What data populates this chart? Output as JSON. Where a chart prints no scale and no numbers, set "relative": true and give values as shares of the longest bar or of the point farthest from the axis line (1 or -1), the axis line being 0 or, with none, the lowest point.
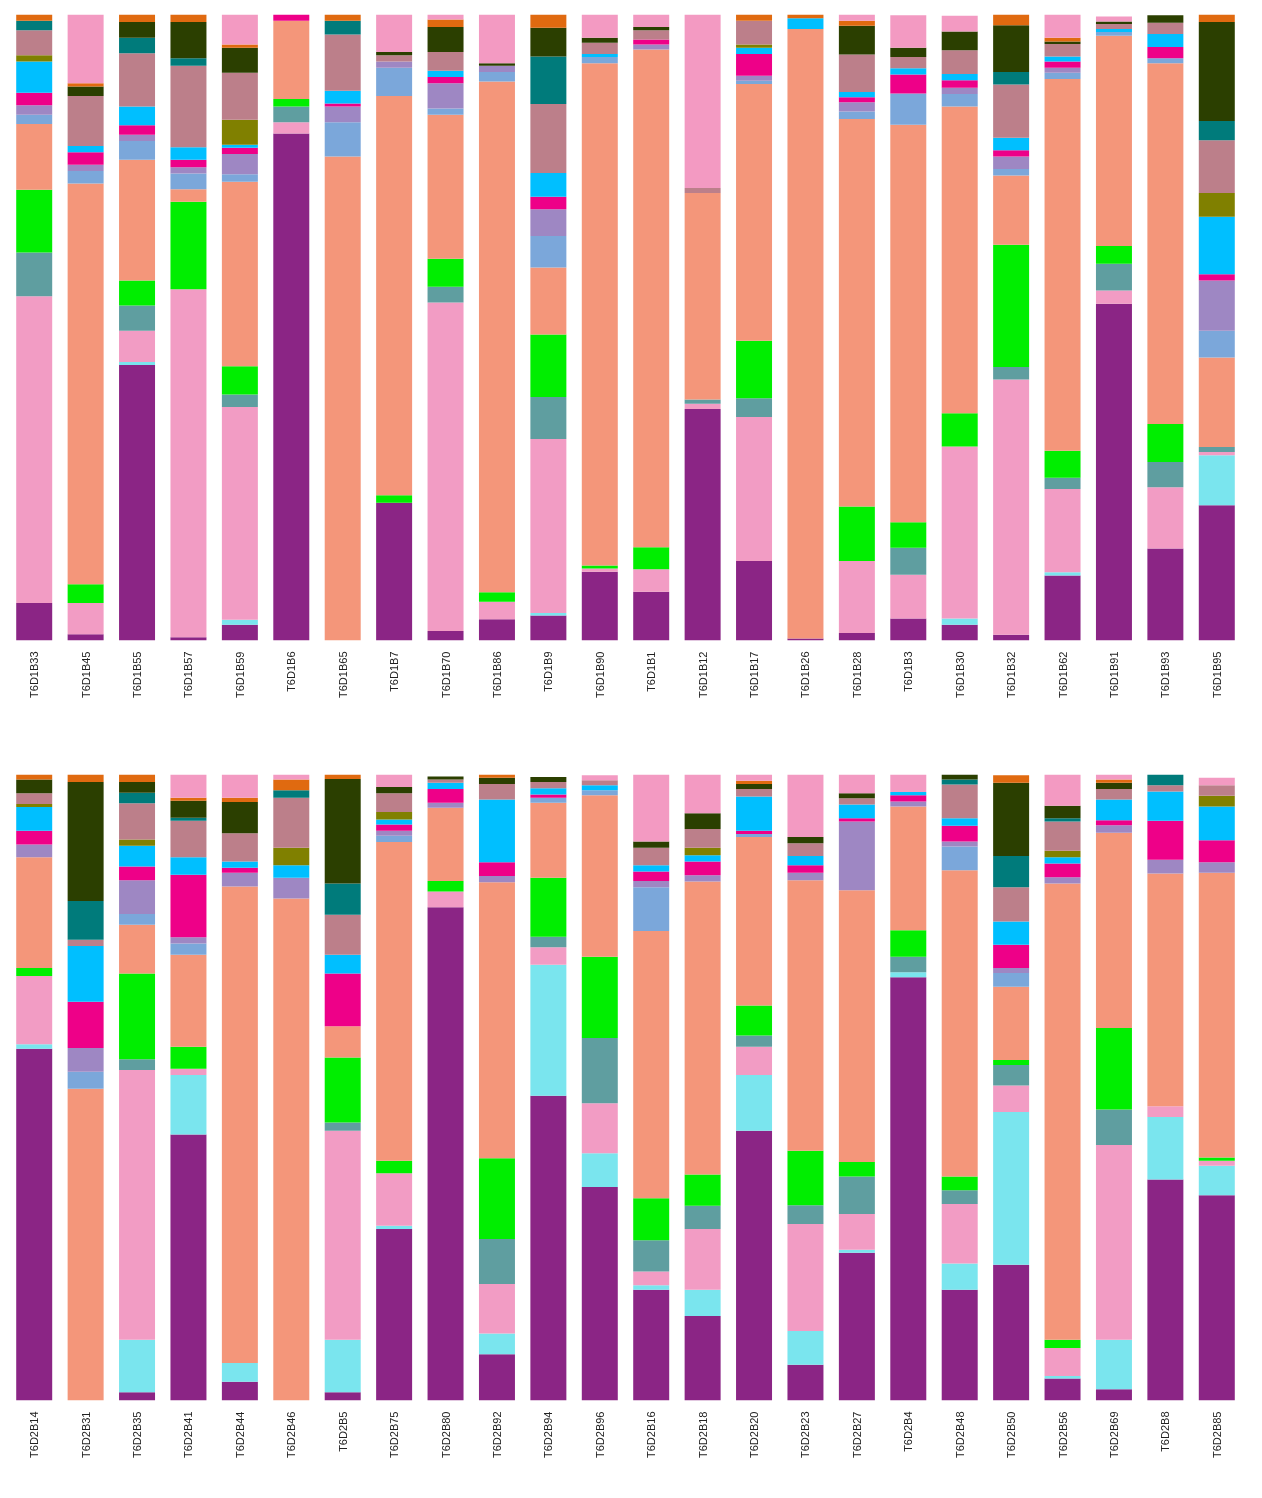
{
  "chart_data": [
    {
      "type": "bar",
      "stacked": true,
      "relative": true,
      "categories": [
        "T6D1B33",
        "T6D1B45",
        "T6D1B55",
        "T6D1B57",
        "T6D1B59",
        "T6D1B6",
        "T6D1B65",
        "T6D1B7",
        "T6D1B70",
        "T6D1B86",
        "T6D1B9",
        "T6D1B90",
        "T6D1B1",
        "T6D1B12",
        "T6D1B17",
        "T6D1B26",
        "T6D1B28",
        "T6D1B3",
        "T6D1B30",
        "T6D1B32",
        "T6D1B62",
        "T6D1B91",
        "T6D1B93",
        "T6D1B95"
      ],
      "series": [
        {
          "color": "#8b2585",
          "values": [
            0.06,
            0.01,
            0.44,
            0.005,
            0.025,
            0.81,
            0,
            0.22,
            0.015,
            0.034,
            0.04,
            0.11,
            0.078,
            0.37,
            0.127,
            0.003,
            0.012,
            0.035,
            0.025,
            0.009,
            0.104,
            0.538,
            0.147,
            0.216
          ]
        },
        {
          "color": "#7ae5ee",
          "values": [
            0,
            0,
            0.005,
            0,
            0.008,
            0,
            0,
            0,
            0,
            0,
            0.004,
            0,
            0,
            0,
            0,
            0,
            0,
            0,
            0.01,
            0,
            0.005,
            0,
            0,
            0.08
          ]
        },
        {
          "color": "#f29cc4",
          "values": [
            0.49,
            0.05,
            0.05,
            0.556,
            0.34,
            0.018,
            0,
            0,
            0.525,
            0.028,
            0.278,
            0.005,
            0.036,
            0.008,
            0.23,
            0,
            0.115,
            0.07,
            0.275,
            0.408,
            0.133,
            0.021,
            0.098,
            0.005
          ]
        },
        {
          "color": "#5f9ea0",
          "values": [
            0.07,
            0,
            0.04,
            0,
            0.02,
            0.025,
            0,
            0,
            0.025,
            0,
            0.067,
            0,
            0,
            0.007,
            0.03,
            0,
            0,
            0.043,
            0,
            0.02,
            0.018,
            0.043,
            0.04,
            0.008
          ]
        },
        {
          "color": "#00ee00",
          "values": [
            0.1,
            0.03,
            0.04,
            0.14,
            0.045,
            0.012,
            0,
            0.012,
            0.045,
            0.015,
            0.1,
            0.005,
            0.035,
            0,
            0.092,
            0,
            0.087,
            0.041,
            0.053,
            0.195,
            0.043,
            0.028,
            0.061,
            0
          ]
        },
        {
          "color": "#f4967a",
          "values": [
            0.105,
            0.64,
            0.193,
            0.02,
            0.295,
            0.125,
            0.773,
            0.638,
            0.23,
            0.816,
            0.107,
            0.802,
            0.795,
            0.33,
            0.41,
            0.974,
            0.619,
            0.635,
            0.49,
            0.111,
            0.594,
            0.336,
            0.576,
            0.143
          ]
        },
        {
          "color": "#7ba7da",
          "values": [
            0.015,
            0.02,
            0.03,
            0.025,
            0.012,
            0,
            0.055,
            0.045,
            0.01,
            0.015,
            0.05,
            0.01,
            0,
            0,
            0.005,
            0,
            0.012,
            0.05,
            0.02,
            0.01,
            0.01,
            0.006,
            0.008,
            0.043
          ]
        },
        {
          "color": "#9e87c3",
          "values": [
            0.015,
            0.01,
            0.01,
            0.01,
            0.032,
            0,
            0.025,
            0.01,
            0.04,
            0.01,
            0.043,
            0,
            0.008,
            0,
            0.008,
            0,
            0.015,
            0,
            0.01,
            0.02,
            0.008,
            0,
            0,
            0.08
          ]
        },
        {
          "color": "#ee0088",
          "values": [
            0.02,
            0.02,
            0.015,
            0.012,
            0.01,
            0.01,
            0.005,
            0,
            0.01,
            0,
            0.02,
            0,
            0.008,
            0,
            0.035,
            0,
            0.008,
            0.03,
            0.012,
            0.01,
            0.01,
            0,
            0.018,
            0.01
          ]
        },
        {
          "color": "#00bfff",
          "values": [
            0.05,
            0.01,
            0.03,
            0.02,
            0.005,
            0,
            0.02,
            0,
            0.01,
            0,
            0.038,
            0.005,
            0,
            0,
            0.01,
            0.017,
            0.008,
            0.01,
            0.01,
            0.02,
            0.008,
            0.005,
            0.021,
            0.092
          ]
        },
        {
          "color": "#808000",
          "values": [
            0.01,
            0,
            0,
            0,
            0.04,
            0,
            0,
            0,
            0,
            0,
            0,
            0,
            0,
            0,
            0.005,
            0,
            0,
            0,
            0,
            0,
            0,
            0,
            0,
            0.038
          ]
        },
        {
          "color": "#bc7f8a",
          "values": [
            0.04,
            0.08,
            0.085,
            0.13,
            0.075,
            0,
            0.09,
            0.01,
            0.03,
            0,
            0.11,
            0.018,
            0.015,
            0.008,
            0.038,
            0,
            0.06,
            0.018,
            0.038,
            0.085,
            0.02,
            0.008,
            0.018,
            0.084
          ]
        },
        {
          "color": "#007b7b",
          "values": [
            0.015,
            0,
            0.025,
            0.012,
            0,
            0,
            0.022,
            0,
            0,
            0,
            0.076,
            0,
            0,
            0,
            0,
            0,
            0,
            0,
            0,
            0.02,
            0,
            0,
            0,
            0.031
          ]
        },
        {
          "color": "#2b3f00",
          "values": [
            0,
            0.015,
            0.025,
            0.058,
            0.04,
            0,
            0,
            0.005,
            0.04,
            0.004,
            0.046,
            0.008,
            0.005,
            0,
            0,
            0,
            0.046,
            0.015,
            0.03,
            0.075,
            0.004,
            0.004,
            0.012,
            0.158
          ]
        },
        {
          "color": "#e06a10",
          "values": [
            0.01,
            0.005,
            0.012,
            0.012,
            0.005,
            0,
            0.01,
            0,
            0.012,
            0,
            0.021,
            0,
            0,
            0,
            0.01,
            0.006,
            0.008,
            0,
            0,
            0.017,
            0.006,
            0,
            0,
            0.012
          ]
        },
        {
          "color": "#f39ac2",
          "values": [
            0,
            0.11,
            0,
            0,
            0.048,
            0,
            0,
            0.06,
            0.008,
            0.078,
            0,
            0.037,
            0.02,
            0.277,
            0,
            0,
            0.01,
            0.052,
            0.025,
            0,
            0.037,
            0.008,
            0,
            0
          ]
        }
      ]
    },
    {
      "type": "bar",
      "stacked": true,
      "relative": true,
      "categories": [
        "T6D2B14",
        "T6D2B31",
        "T6D2B35",
        "T6D2B41",
        "T6D2B44",
        "T6D2B46",
        "T6D2B5",
        "T6D2B75",
        "T6D2B80",
        "T6D2B92",
        "T6D2B94",
        "T6D2B96",
        "T6D2B16",
        "T6D2B18",
        "T6D2B20",
        "T6D2B23",
        "T6D2B27",
        "T6D2B4",
        "T6D2B48",
        "T6D2B50",
        "T6D2B56",
        "T6D2B69",
        "T6D2B8",
        "T6D2B85"
      ],
      "series": [
        {
          "color": "#8b2585",
          "values": [
            0.562,
            0,
            0.013,
            0.425,
            0.03,
            0,
            0.013,
            0.274,
            0.788,
            0.074,
            0.487,
            0.341,
            0.177,
            0.135,
            0.431,
            0.057,
            0.236,
            0.676,
            0.177,
            0.217,
            0.035,
            0.018,
            0.353,
            0.328
          ]
        },
        {
          "color": "#7ae5ee",
          "values": [
            0.007,
            0,
            0.084,
            0.095,
            0.03,
            0,
            0.084,
            0.005,
            0,
            0.033,
            0.209,
            0.054,
            0.007,
            0.042,
            0.089,
            0.054,
            0.005,
            0.008,
            0.042,
            0.244,
            0.004,
            0.079,
            0.1,
            0.047
          ]
        },
        {
          "color": "#f29cc4",
          "values": [
            0.109,
            0,
            0.431,
            0.01,
            0,
            0,
            0.334,
            0.084,
            0.025,
            0.079,
            0.028,
            0.08,
            0.022,
            0.097,
            0.045,
            0.171,
            0.057,
            0,
            0.095,
            0.042,
            0.045,
            0.311,
            0.017,
            0.008
          ]
        },
        {
          "color": "#5f9ea0",
          "values": [
            0,
            0,
            0.017,
            0,
            0,
            0,
            0.013,
            0,
            0,
            0.072,
            0.017,
            0.104,
            0.05,
            0.037,
            0.018,
            0.03,
            0.06,
            0.025,
            0.022,
            0.033,
            0,
            0.057,
            0,
            0
          ]
        },
        {
          "color": "#00ee00",
          "values": [
            0.013,
            0,
            0.137,
            0.035,
            0,
            0,
            0.104,
            0.02,
            0.017,
            0.129,
            0.094,
            0.13,
            0.067,
            0.05,
            0.048,
            0.087,
            0.023,
            0.042,
            0.022,
            0.008,
            0.013,
            0.13,
            0,
            0.005
          ]
        },
        {
          "color": "#f4967a",
          "values": [
            0.177,
            0.498,
            0.078,
            0.147,
            0.761,
            0.802,
            0.05,
            0.509,
            0.117,
            0.441,
            0.12,
            0.258,
            0.427,
            0.468,
            0.269,
            0.432,
            0.434,
            0.198,
            0.489,
            0.117,
            0.729,
            0.312,
            0.372,
            0.455
          ]
        },
        {
          "color": "#7ba7da",
          "values": [
            0,
            0.027,
            0.017,
            0.018,
            0,
            0,
            0,
            0.01,
            0,
            0,
            0.008,
            0.008,
            0.07,
            0,
            0.005,
            0,
            0,
            0,
            0.038,
            0.022,
            0,
            0,
            0,
            0
          ]
        },
        {
          "color": "#9e87c3",
          "values": [
            0.02,
            0.038,
            0.054,
            0.01,
            0.022,
            0.033,
            0,
            0.008,
            0.008,
            0.01,
            0,
            0,
            0.01,
            0.01,
            0,
            0.012,
            0.11,
            0.008,
            0.008,
            0.008,
            0.01,
            0.012,
            0.022,
            0.017
          ]
        },
        {
          "color": "#ee0088",
          "values": [
            0.022,
            0.074,
            0.022,
            0.1,
            0.008,
            0,
            0.084,
            0.01,
            0.022,
            0.022,
            0.005,
            0,
            0.015,
            0.022,
            0.005,
            0.012,
            0.005,
            0.01,
            0.025,
            0.037,
            0.022,
            0.008,
            0.062,
            0.035
          ]
        },
        {
          "color": "#00bfff",
          "values": [
            0.038,
            0.089,
            0.033,
            0.028,
            0.01,
            0.02,
            0.03,
            0.008,
            0.01,
            0.1,
            0.01,
            0.008,
            0.01,
            0.01,
            0.055,
            0.015,
            0.022,
            0.005,
            0.012,
            0.037,
            0.01,
            0.033,
            0.047,
            0.054
          ]
        },
        {
          "color": "#808000",
          "values": [
            0.005,
            0,
            0.01,
            0,
            0,
            0.028,
            0,
            0.012,
            0,
            0,
            0,
            0,
            0,
            0.012,
            0,
            0,
            0,
            0,
            0,
            0,
            0.01,
            0,
            0,
            0.017
          ]
        },
        {
          "color": "#bc7f8a",
          "values": [
            0.017,
            0.01,
            0.058,
            0.058,
            0.045,
            0.08,
            0.064,
            0.03,
            0.005,
            0.025,
            0.01,
            0.008,
            0.028,
            0.03,
            0.012,
            0.02,
            0.01,
            0,
            0.054,
            0.055,
            0.047,
            0.017,
            0.01,
            0.017
          ]
        },
        {
          "color": "#007b7b",
          "values": [
            0,
            0.062,
            0.017,
            0.005,
            0,
            0.012,
            0.05,
            0,
            0,
            0,
            0,
            0,
            0,
            0,
            0,
            0,
            0,
            0,
            0.008,
            0.05,
            0.005,
            0,
            0.017,
            0
          ]
        },
        {
          "color": "#2b3f00",
          "values": [
            0.022,
            0.19,
            0.017,
            0.027,
            0.05,
            0,
            0.167,
            0.01,
            0.005,
            0.01,
            0.008,
            0,
            0.01,
            0.025,
            0.008,
            0.01,
            0.008,
            0,
            0.008,
            0.117,
            0.02,
            0.01,
            0,
            0
          ]
        },
        {
          "color": "#e06a10",
          "values": [
            0.008,
            0.012,
            0.012,
            0.005,
            0.007,
            0.017,
            0.007,
            0,
            0,
            0.005,
            0,
            0,
            0,
            0,
            0.005,
            0,
            0,
            0,
            0,
            0.012,
            0,
            0.005,
            0,
            0
          ]
        },
        {
          "color": "#f39ac2",
          "values": [
            0,
            0,
            0,
            0.037,
            0.037,
            0.008,
            0,
            0.02,
            0,
            0,
            0,
            0.008,
            0.107,
            0.062,
            0.01,
            0.1,
            0.03,
            0.028,
            0,
            0,
            0.05,
            0.008,
            0,
            0.012
          ]
        }
      ]
    }
  ]
}
